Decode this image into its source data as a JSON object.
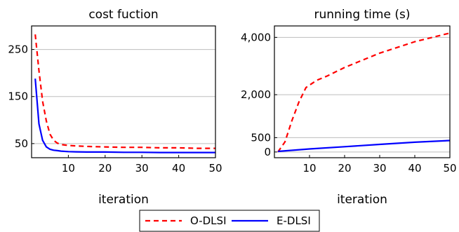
{
  "chart_data": [
    {
      "type": "line",
      "title": "cost fuction",
      "xlabel": "iteration",
      "ylabel": "",
      "xlim": [
        0,
        50
      ],
      "ylim": [
        20,
        300
      ],
      "xticks": [
        10,
        20,
        30,
        40,
        50
      ],
      "xtick_labels": [
        "10",
        "20",
        "30",
        "40",
        "50"
      ],
      "yticks": [
        50,
        150,
        250
      ],
      "ytick_labels": [
        "50",
        "150",
        "250"
      ],
      "grid": "horizontal",
      "series": [
        {
          "name": "O-DLSI",
          "style": "dashed",
          "color": "#ff0000",
          "x": [
            1,
            2,
            3,
            4,
            5,
            6,
            7,
            8,
            10,
            12,
            15,
            20,
            25,
            30,
            35,
            40,
            45,
            50
          ],
          "y": [
            282,
            205,
            140,
            98,
            70,
            57,
            51,
            48,
            46,
            45,
            44,
            43,
            42,
            42,
            41,
            41,
            40,
            40
          ]
        },
        {
          "name": "E-DLSI",
          "style": "solid",
          "color": "#0000ff",
          "x": [
            1,
            2,
            3,
            4,
            5,
            6,
            7,
            8,
            10,
            12,
            15,
            20,
            25,
            30,
            35,
            40,
            45,
            50
          ],
          "y": [
            188,
            92,
            57,
            43,
            38,
            36,
            35,
            34,
            33,
            32.5,
            32,
            32,
            31.5,
            31.5,
            31,
            31,
            31,
            31
          ]
        }
      ]
    },
    {
      "type": "line",
      "title": "running time (s)",
      "xlabel": "iteration",
      "ylabel": "",
      "xlim": [
        0,
        50
      ],
      "ylim": [
        -200,
        4400
      ],
      "xticks": [
        10,
        20,
        30,
        40,
        50
      ],
      "xtick_labels": [
        "10",
        "20",
        "30",
        "40",
        "50"
      ],
      "yticks": [
        0,
        500,
        2000,
        4000
      ],
      "ytick_labels": [
        "0",
        "500",
        "2,000",
        "4,000"
      ],
      "grid": "horizontal",
      "series": [
        {
          "name": "O-DLSI",
          "style": "dashed",
          "color": "#ff0000",
          "x": [
            1,
            3,
            5,
            7,
            9,
            12,
            15,
            20,
            25,
            30,
            35,
            40,
            45,
            50
          ],
          "y": [
            0,
            350,
            1100,
            1750,
            2250,
            2500,
            2650,
            2950,
            3200,
            3450,
            3650,
            3850,
            4000,
            4150
          ]
        },
        {
          "name": "E-DLSI",
          "style": "solid",
          "color": "#0000ff",
          "x": [
            1,
            10,
            20,
            30,
            40,
            50
          ],
          "y": [
            20,
            105,
            185,
            265,
            340,
            400
          ]
        }
      ]
    }
  ],
  "legend": {
    "placement": "bottom-center",
    "items": [
      {
        "label": "O-DLSI",
        "style": "dashed",
        "color": "#ff0000"
      },
      {
        "label": "E-DLSI",
        "style": "solid",
        "color": "#0000ff"
      }
    ]
  }
}
